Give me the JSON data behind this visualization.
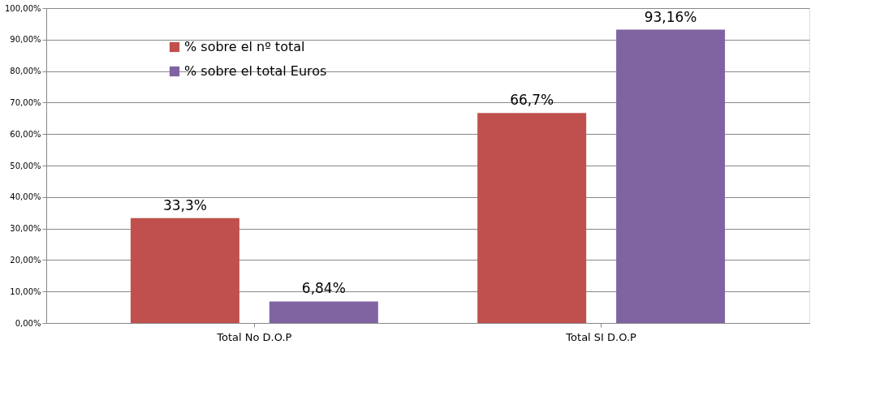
{
  "chart_data": {
    "type": "bar",
    "categories": [
      "Total No D.O.P",
      "Total SI D.O.P"
    ],
    "series": [
      {
        "name": "% sobre el nº total",
        "color": "#c0504d",
        "values": [
          33.3,
          66.7
        ],
        "value_labels": [
          "33,3%",
          "66,7%"
        ]
      },
      {
        "name": "% sobre el total   Euros",
        "color": "#8064a2",
        "values": [
          6.84,
          93.16
        ],
        "value_labels": [
          "6,84%",
          "93,16%"
        ]
      }
    ],
    "ylim": [
      0,
      100
    ],
    "yticks": [
      {
        "value": 0,
        "label": "0,00%"
      },
      {
        "value": 10,
        "label": "10,00%"
      },
      {
        "value": 20,
        "label": "20,00%"
      },
      {
        "value": 30,
        "label": "30,00%"
      },
      {
        "value": 40,
        "label": "40,00%"
      },
      {
        "value": 50,
        "label": "50,00%"
      },
      {
        "value": 60,
        "label": "60,00%"
      },
      {
        "value": 70,
        "label": "70,00%"
      },
      {
        "value": 80,
        "label": "80,00%"
      },
      {
        "value": 90,
        "label": "90,00%"
      },
      {
        "value": 100,
        "label": "100,00%"
      }
    ],
    "grid": "y",
    "legend": "top left"
  }
}
